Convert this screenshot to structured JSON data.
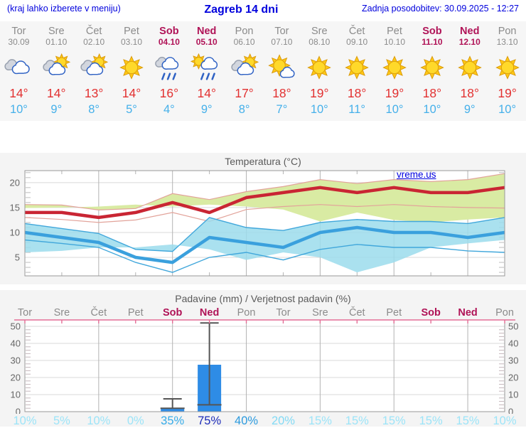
{
  "header": {
    "left_note": "(kraj lahko izberete v meniju)",
    "title": "Zagreb 14 dni",
    "updated": "Zadnja posodobitev: 30.09.2025 - 12:27"
  },
  "colors": {
    "accent_blue": "#0000dd",
    "weekend": "#b01357",
    "day_gray": "#8b8b8b",
    "temp_high": "#e23131",
    "temp_low": "#45b0ea",
    "max_line": "#c92533",
    "max_band": "#d9eba3",
    "max_band_edge": "#e2a39a",
    "min_line": "#3aa0dd",
    "min_band": "#9bdcec",
    "min_band_edge": "#41a7db",
    "bar_blue": "#2e8ce6",
    "whisker": "#555555",
    "precip_border_pink": "#e46e96",
    "grid_major": "#b3b3b3",
    "grid_light": "#d9d9d9",
    "plot_border": "#999999",
    "axis_text": "#666666"
  },
  "forecast": {
    "days": [
      {
        "name": "Tor",
        "date": "30.09",
        "icon": "cloudy",
        "high": "14",
        "low": "10",
        "weekend": false
      },
      {
        "name": "Sre",
        "date": "01.10",
        "icon": "partly",
        "high": "14",
        "low": "9",
        "weekend": false
      },
      {
        "name": "Čet",
        "date": "02.10",
        "icon": "partly",
        "high": "13",
        "low": "8",
        "weekend": false
      },
      {
        "name": "Pet",
        "date": "03.10",
        "icon": "sunny",
        "high": "14",
        "low": "5",
        "weekend": false
      },
      {
        "name": "Sob",
        "date": "04.10",
        "icon": "rain",
        "high": "16",
        "low": "4",
        "weekend": true
      },
      {
        "name": "Ned",
        "date": "05.10",
        "icon": "sun-rain",
        "high": "14",
        "low": "9",
        "weekend": true
      },
      {
        "name": "Pon",
        "date": "06.10",
        "icon": "partly",
        "high": "17",
        "low": "8",
        "weekend": false
      },
      {
        "name": "Tor",
        "date": "07.10",
        "icon": "mostly-sunny",
        "high": "18",
        "low": "7",
        "weekend": false
      },
      {
        "name": "Sre",
        "date": "08.10",
        "icon": "sunny",
        "high": "19",
        "low": "10",
        "weekend": false
      },
      {
        "name": "Čet",
        "date": "09.10",
        "icon": "sunny",
        "high": "18",
        "low": "11",
        "weekend": false
      },
      {
        "name": "Pet",
        "date": "10.10",
        "icon": "sunny",
        "high": "19",
        "low": "10",
        "weekend": false
      },
      {
        "name": "Sob",
        "date": "11.10",
        "icon": "sunny",
        "high": "18",
        "low": "10",
        "weekend": true
      },
      {
        "name": "Ned",
        "date": "12.10",
        "icon": "sunny",
        "high": "18",
        "low": "9",
        "weekend": true
      },
      {
        "name": "Pon",
        "date": "13.10",
        "icon": "sunny",
        "high": "19",
        "low": "10",
        "weekend": false
      }
    ]
  },
  "temp_chart": {
    "title": "Temperatura (°C)",
    "watermark": "vreme.us"
  },
  "precip_chart": {
    "title": "Padavine (mm) / Verjetnost padavin (%)"
  },
  "chart_data": [
    {
      "type": "line",
      "title": "Temperatura (°C)",
      "x_labels": [
        "Tor 30.09",
        "Sre 01.10",
        "Čet 02.10",
        "Pet 03.10",
        "Sob 04.10",
        "Ned 05.10",
        "Pon 06.10",
        "Tor 07.10",
        "Sre 08.10",
        "Čet 09.10",
        "Pet 10.10",
        "Sob 11.10",
        "Ned 12.10",
        "Pon 13.10"
      ],
      "ylim": [
        1.3,
        22.4
      ],
      "yticks": [
        5,
        10,
        15,
        20
      ],
      "grid": "vertical lines every 2nd day, horizontal at yticks",
      "series": [
        {
          "name": "max temperature",
          "values": [
            14,
            14,
            13,
            14,
            16,
            14,
            17,
            18,
            19,
            18,
            19,
            18,
            18,
            19
          ]
        },
        {
          "name": "max range upper",
          "values": [
            15.6,
            15.5,
            14.5,
            14.8,
            17.8,
            16.6,
            18.2,
            19.2,
            20.6,
            19.8,
            20.6,
            20.2,
            20.6,
            21.8
          ]
        },
        {
          "name": "max range lower",
          "values": [
            13.0,
            12.6,
            12.0,
            12.5,
            14.0,
            12.2,
            14.6,
            15.2,
            15.6,
            15.2,
            15.6,
            15.2,
            15.0,
            14.9
          ]
        },
        {
          "name": "min temperature",
          "values": [
            10,
            9,
            8,
            5,
            4,
            9,
            8,
            7,
            10,
            11,
            10,
            10,
            9,
            10
          ]
        },
        {
          "name": "min range upper",
          "values": [
            11.8,
            10.8,
            9.8,
            6.6,
            6.2,
            13.0,
            11.0,
            10.4,
            12.0,
            12.6,
            12.2,
            12.2,
            11.8,
            13.0
          ]
        },
        {
          "name": "min range lower",
          "values": [
            8.5,
            7.8,
            7.0,
            4.0,
            2.0,
            5.0,
            6.0,
            4.5,
            6.6,
            7.6,
            7.0,
            7.0,
            6.3,
            6.0
          ]
        }
      ]
    },
    {
      "type": "bar",
      "title": "Padavine (mm) / Verjetnost padavin (%)",
      "categories": [
        "Tor",
        "Sre",
        "Čet",
        "Pet",
        "Sob",
        "Ned",
        "Pon",
        "Tor",
        "Sre",
        "Čet",
        "Pet",
        "Sob",
        "Ned",
        "Pon"
      ],
      "weekend_indices": [
        4,
        5,
        11,
        12
      ],
      "precip_mm": [
        0,
        0,
        0,
        0,
        2,
        27.5,
        0,
        0,
        0,
        0,
        0,
        0,
        0,
        0
      ],
      "whisker_low": [
        null,
        null,
        null,
        null,
        2,
        4,
        null,
        null,
        null,
        null,
        null,
        null,
        null,
        null
      ],
      "whisker_high": [
        null,
        null,
        null,
        null,
        7.5,
        52,
        null,
        null,
        null,
        null,
        null,
        null,
        null,
        null
      ],
      "probability_pct": [
        10,
        5,
        10,
        0,
        35,
        75,
        40,
        20,
        15,
        15,
        15,
        15,
        15,
        10
      ],
      "probability_colors": [
        "#9ce4f8",
        "#9ce4f8",
        "#9ce4f8",
        "#9ce4f8",
        "#35abe8",
        "#1c2bb8",
        "#2b9ade",
        "#82daf5",
        "#9ce4f8",
        "#9ce4f8",
        "#9ce4f8",
        "#9ce4f8",
        "#9ce4f8",
        "#9ce4f8"
      ],
      "ylim": [
        0,
        52
      ],
      "yticks": [
        0,
        10,
        20,
        30,
        40,
        50
      ]
    }
  ]
}
